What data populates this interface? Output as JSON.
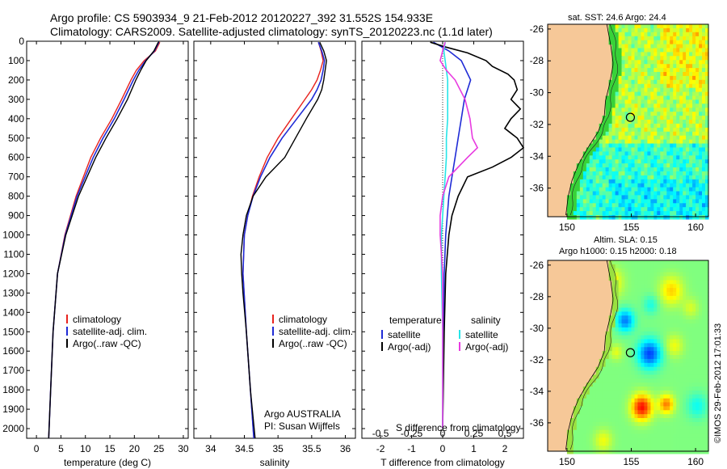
{
  "header": {
    "title_line1": "Argo profile: CS 5903934_9 21-Feb-2012 20120227_392 31.552S 154.933E",
    "title_line2": "Climatology: CARS2009. Satellite-adjusted climatology: synTS_20120223.nc (1.1d later)"
  },
  "credit": "©IMOS 29-Feb-2012 17:01:33",
  "colors": {
    "climatology": "#e8231e",
    "satellite": "#1f2bd6",
    "argo": "#000000",
    "s_satellite": "#27e5e8",
    "s_argo": "#e83ae0",
    "land": "#f6c898"
  },
  "depth_axis": {
    "min": 0,
    "max": 2050,
    "ticks": [
      0,
      100,
      200,
      300,
      400,
      500,
      600,
      700,
      800,
      900,
      1000,
      1100,
      1200,
      1300,
      1400,
      1500,
      1600,
      1700,
      1800,
      1900,
      2000
    ]
  },
  "chart_data": [
    {
      "type": "line",
      "xlabel": "temperature (deg C)",
      "xlim": [
        -2,
        31
      ],
      "xticks": [
        0,
        5,
        10,
        15,
        20,
        25,
        30
      ],
      "legend": [
        "climatology",
        "satellite-adj. clim.",
        "Argo(..raw -QC)"
      ],
      "series": [
        {
          "name": "climatology",
          "depth": [
            5,
            50,
            100,
            150,
            200,
            300,
            400,
            500,
            600,
            800,
            1000,
            1200,
            1500,
            1800,
            2050
          ],
          "values": [
            25.2,
            24.3,
            22.0,
            20.4,
            19.3,
            17.4,
            15.4,
            13.1,
            11.1,
            8.1,
            5.8,
            4.3,
            3.4,
            2.9,
            2.5
          ]
        },
        {
          "name": "satellite-adj. clim.",
          "depth": [
            5,
            50,
            100,
            150,
            200,
            300,
            400,
            500,
            600,
            800,
            1000,
            1200,
            1500,
            1800,
            2050
          ],
          "values": [
            25.0,
            24.1,
            22.3,
            20.9,
            19.8,
            17.9,
            15.9,
            13.6,
            11.6,
            8.3,
            5.9,
            4.3,
            3.4,
            2.9,
            2.5
          ]
        },
        {
          "name": "Argo(..raw -QC)",
          "depth": [
            5,
            50,
            100,
            150,
            200,
            300,
            400,
            500,
            600,
            800,
            1000,
            1200,
            1500,
            1800,
            2050
          ],
          "values": [
            24.9,
            24.0,
            22.4,
            21.3,
            20.3,
            18.6,
            16.5,
            14.2,
            12.1,
            8.6,
            6.0,
            4.3,
            3.4,
            2.9,
            2.5
          ]
        }
      ]
    },
    {
      "type": "line",
      "xlabel": "salinity",
      "xlim": [
        33.75,
        36.15
      ],
      "xticks": [
        34,
        34.5,
        35,
        35.5,
        36
      ],
      "legend": [
        "climatology",
        "satellite-adj. clim.",
        "Argo(..raw -QC)"
      ],
      "annotation": [
        "Argo AUSTRALIA",
        "PI: Susan Wijffels"
      ],
      "series": [
        {
          "name": "climatology",
          "depth": [
            5,
            50,
            100,
            150,
            200,
            250,
            300,
            400,
            500,
            600,
            700,
            800,
            900,
            1000,
            1200,
            1500,
            1800,
            2050
          ],
          "values": [
            35.6,
            35.64,
            35.67,
            35.63,
            35.58,
            35.5,
            35.4,
            35.2,
            35.0,
            34.84,
            34.72,
            34.62,
            34.55,
            34.5,
            34.48,
            34.53,
            34.59,
            34.64
          ]
        },
        {
          "name": "satellite-adj. clim.",
          "depth": [
            5,
            50,
            100,
            150,
            200,
            250,
            300,
            400,
            500,
            600,
            700,
            800,
            900,
            1000,
            1200,
            1500,
            1800,
            2050
          ],
          "values": [
            35.6,
            35.65,
            35.69,
            35.67,
            35.64,
            35.58,
            35.5,
            35.28,
            35.06,
            34.88,
            34.74,
            34.63,
            34.55,
            34.5,
            34.48,
            34.53,
            34.59,
            34.64
          ]
        },
        {
          "name": "Argo(..raw -QC)",
          "depth": [
            5,
            50,
            100,
            150,
            200,
            250,
            300,
            400,
            500,
            600,
            700,
            800,
            900,
            1000,
            1100,
            1200,
            1300,
            1500,
            1800,
            2050
          ],
          "values": [
            35.62,
            35.68,
            35.72,
            35.7,
            35.68,
            35.65,
            35.59,
            35.42,
            35.26,
            35.1,
            34.82,
            34.63,
            34.53,
            34.48,
            34.45,
            34.46,
            34.48,
            34.53,
            34.59,
            34.66
          ]
        }
      ]
    },
    {
      "type": "line",
      "xlabel": "T difference from climatology",
      "xlabel_top": "S difference from climatology",
      "xlim": [
        -2.6,
        2.6
      ],
      "xticks": [
        -2,
        -1,
        0,
        1,
        2
      ],
      "sticks_labels": [
        "-0.5",
        "-0.25",
        "0",
        "0.25",
        "0.5"
      ],
      "legend_temperature_title": "temperature",
      "legend_salinity_title": "salinity",
      "legend_temperature": [
        "satellite",
        "Argo(-adj)"
      ],
      "legend_salinity": [
        "satellite",
        "Argo(-adj)"
      ],
      "series": [
        {
          "name": "temperature satellite",
          "depth": [
            5,
            50,
            100,
            200,
            300,
            400,
            500,
            600,
            700,
            800,
            1000,
            1200,
            1500,
            2000
          ],
          "values": [
            -0.3,
            0.2,
            0.6,
            0.9,
            0.7,
            0.6,
            0.5,
            0.4,
            0.3,
            0.2,
            0.1,
            0.05,
            0.02,
            0.0
          ]
        },
        {
          "name": "temperature Argo(-adj)",
          "depth": [
            5,
            30,
            60,
            100,
            130,
            170,
            200,
            250,
            300,
            350,
            400,
            450,
            500,
            550,
            600,
            650,
            700,
            800,
            900,
            1000,
            1200,
            1500,
            2000
          ],
          "values": [
            -0.4,
            0.1,
            0.8,
            1.4,
            1.6,
            2.1,
            2.3,
            2.4,
            2.2,
            2.5,
            2.2,
            2.0,
            2.4,
            2.6,
            2.2,
            1.6,
            0.8,
            0.5,
            0.3,
            0.2,
            0.1,
            0.05,
            0.0
          ]
        },
        {
          "name": "salinity satellite",
          "depth": [
            5,
            50,
            100,
            200,
            300,
            400,
            500,
            600,
            700,
            800,
            900,
            1000,
            1200,
            1500,
            2000
          ],
          "values": [
            0.02,
            0.01,
            0.02,
            0.04,
            0.04,
            0.04,
            0.03,
            0.03,
            0.02,
            0.01,
            0.0,
            -0.01,
            -0.01,
            0.0,
            0.0
          ]
        },
        {
          "name": "salinity Argo(-adj)",
          "depth": [
            5,
            50,
            100,
            150,
            200,
            300,
            400,
            500,
            550,
            600,
            700,
            800,
            900,
            1000,
            1100,
            1200,
            1500,
            2000
          ],
          "values": [
            0.02,
            0.0,
            -0.02,
            0.03,
            0.1,
            0.18,
            0.22,
            0.24,
            0.28,
            0.2,
            0.05,
            0.0,
            -0.02,
            -0.02,
            -0.01,
            0.0,
            0.0,
            0.0
          ]
        }
      ]
    },
    {
      "type": "heatmap",
      "title": "sat. SST: 24.6  Argo: 24.4",
      "xlim": [
        148.5,
        161
      ],
      "ylim": [
        -37.8,
        -25.7
      ],
      "xticks": [
        150,
        155,
        160
      ],
      "yticks": [
        -26,
        -28,
        -30,
        -32,
        -34,
        -36
      ],
      "argo_marker": [
        154.933,
        -31.552
      ]
    },
    {
      "type": "heatmap",
      "title_line1": "Altim. SLA: 0.15",
      "title_line2": "Argo h1000: 0.15 h2000: 0.18",
      "xlim": [
        148.5,
        161
      ],
      "ylim": [
        -37.8,
        -25.7
      ],
      "xticks": [
        150,
        155,
        160
      ],
      "yticks": [
        -26,
        -28,
        -30,
        -32,
        -34,
        -36
      ],
      "argo_marker": [
        154.933,
        -31.552
      ]
    }
  ]
}
